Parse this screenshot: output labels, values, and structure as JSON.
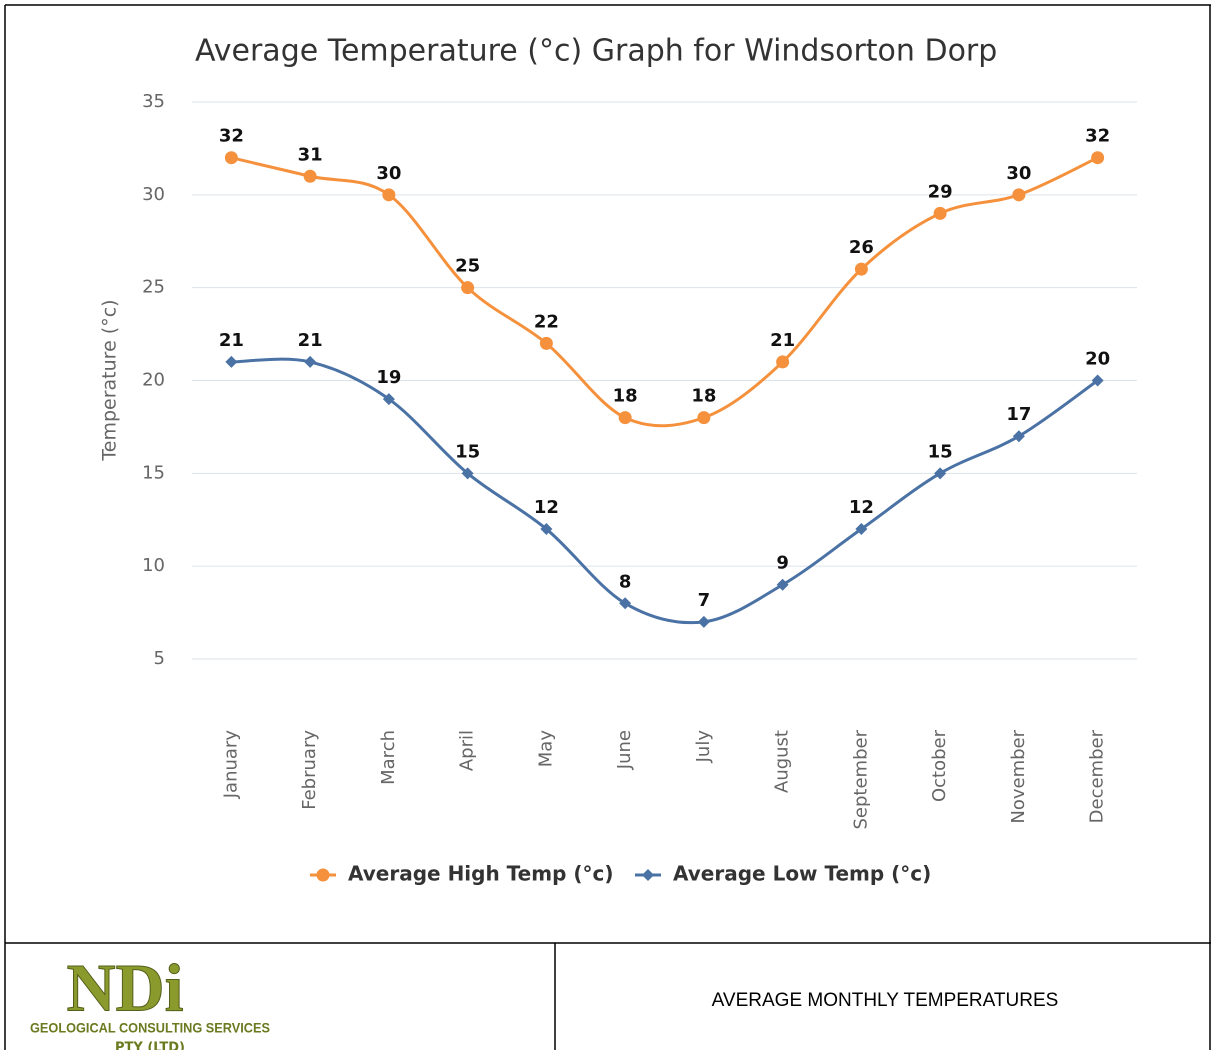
{
  "chart_data": {
    "type": "line",
    "title": "Average Temperature (°c) Graph for Windsorton Dorp",
    "y_label": "Temperature (°c)",
    "categories": [
      "January",
      "February",
      "March",
      "April",
      "May",
      "June",
      "July",
      "August",
      "September",
      "October",
      "November",
      "December"
    ],
    "series": [
      {
        "name": "Average High Temp (°c)",
        "color": "#f5913c",
        "marker": "circle",
        "values": [
          32,
          31,
          30,
          25,
          22,
          18,
          18,
          21,
          26,
          29,
          30,
          32
        ]
      },
      {
        "name": "Average Low Temp (°c)",
        "color": "#4a72a5",
        "marker": "diamond",
        "values": [
          21,
          21,
          19,
          15,
          12,
          8,
          7,
          9,
          12,
          15,
          17,
          20
        ]
      }
    ],
    "ylim": [
      5,
      35
    ],
    "yticks": [
      5,
      10,
      15,
      20,
      25,
      30,
      35
    ],
    "grid": true,
    "legend": "bottom"
  },
  "logo": {
    "mark": "NDi",
    "line1": "GEOLOGICAL CONSULTING SERVICES",
    "line2": "PTY (LTD)"
  },
  "caption": "AVERAGE MONTHLY TEMPERATURES"
}
